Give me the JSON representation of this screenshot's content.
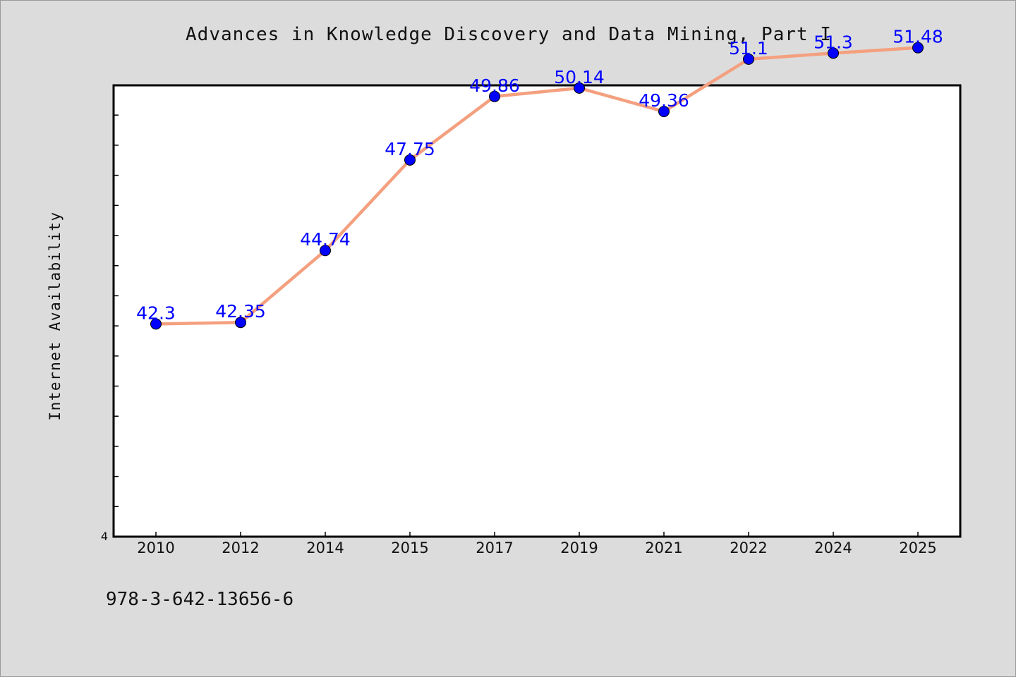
{
  "chart_data": {
    "type": "line",
    "title": "Advances in Knowledge Discovery and Data Mining, Part I",
    "xlabel": "",
    "ylabel": "Internet Availability",
    "categories": [
      "2010",
      "2012",
      "2014",
      "2015",
      "2017",
      "2019",
      "2021",
      "2022",
      "2024",
      "2025"
    ],
    "series": [
      {
        "values": [
          42.3,
          42.35,
          44.74,
          47.75,
          49.86,
          50.14,
          49.36,
          51.1,
          51.3,
          51.48
        ],
        "data_labels": [
          "42.3",
          "42.35",
          "44.74",
          "47.75",
          "49.86",
          "50.14",
          "49.36",
          "51.1",
          "51.3",
          "51.48"
        ],
        "line_color": "#f4a07f",
        "marker_color": "#0000ff"
      }
    ],
    "ylim": [
      35.23,
      50.23
    ],
    "y_tick_labels": [
      "4"
    ],
    "grid": false,
    "legend": "none",
    "label_color": "#0000ff",
    "plot_background": "#ffffff",
    "page_background": "#dcdcdc"
  },
  "footer": {
    "isbn": "978-3-642-13656-6"
  }
}
